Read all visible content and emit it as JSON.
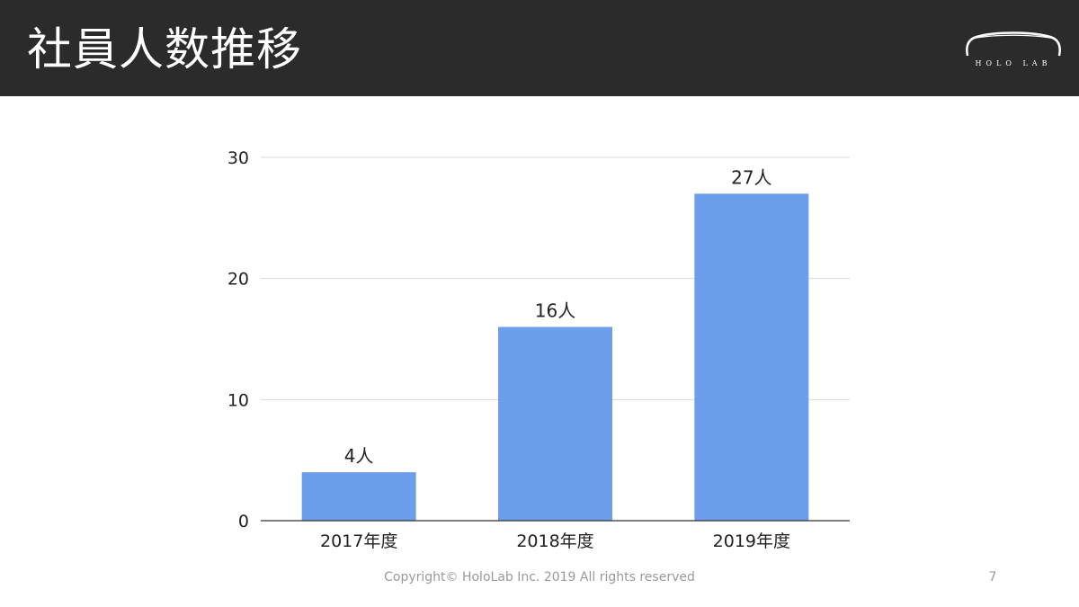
{
  "slide": {
    "title": "社員人数推移",
    "logo_text": "HOLO LAB",
    "footer": "Copyright© HoloLab Inc. 2019 All rights reserved",
    "page_number": "7"
  },
  "colors": {
    "header_bg": "#2b2b2b",
    "bar": "#6d9eeb",
    "grid": "#d9d9d9",
    "axis": "#333333",
    "text": "#222222"
  },
  "chart_data": {
    "type": "bar",
    "categories": [
      "2017年度",
      "2018年度",
      "2019年度"
    ],
    "values": [
      4,
      16,
      27
    ],
    "data_labels": [
      "4人",
      "16人",
      "27人"
    ],
    "yticks": [
      "0",
      "10",
      "20",
      "30"
    ],
    "ylim": [
      0,
      30
    ],
    "grid": true,
    "legend": false
  }
}
